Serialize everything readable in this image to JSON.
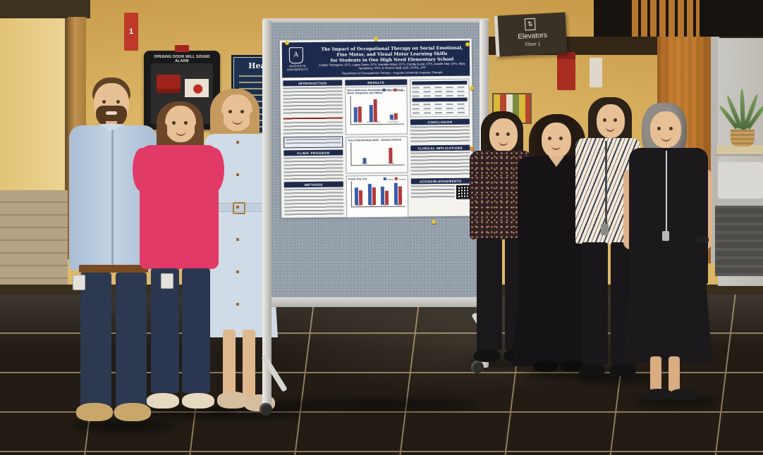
{
  "signs": {
    "stairwell_number": "1",
    "alarm_warning": "OPENING DOOR WILL SOUND ALARM",
    "directory_title": "Health",
    "elevator_label": "Elevators",
    "elevator_floor": "Floor 1",
    "elevator_icon_glyph": "⇅"
  },
  "poster": {
    "logo_letter": "A",
    "university_name": "AUGUSTA UNIVERSITY",
    "title_line1": "The Impact of Occupational Therapy on Social Emotional, Fine Motor, and Visual Motor Learning Skills",
    "title_line2": "for Students in One High Need Elementary School",
    "authors": "Caitlyn Thompson, OTS, Logan Owen, OTS, Haynlee Wood, OTS, Camila Guinn, OTS, Amelie Tate, OTS, Abby Sprayberry, OTS, & Sharon Swift, EdD, OTR/L, ATP",
    "affiliation": "Department of Occupational Therapy – Augusta University, Augusta, Georgia",
    "sections": {
      "introduction": "INTRODUCTION",
      "clinic_program": "CLINIC PROGRAM",
      "methods": "METHODS",
      "results": "RESULTS",
      "conclusion": "CONCLUSION",
      "clinical_implications": "CLINICAL IMPLICATIONS",
      "acknowledgements": "ACKNOWLEDGEMENTS"
    }
  },
  "chart_data": [
    {
      "type": "bar",
      "title": "Beery-Buktenica Developmental Test of Visual Motor Integration, 6th Edition",
      "categories": [
        "VMI Total",
        "Visual Perception",
        "Motor Coordination"
      ],
      "series": [
        {
          "name": "Pretest",
          "color": "#3a5fa8",
          "values": [
            55,
            65,
            20
          ]
        },
        {
          "name": "Posttest",
          "color": "#b23b3b",
          "values": [
            60,
            85,
            28
          ]
        }
      ],
      "ymax": 100,
      "legend": true,
      "legend_position": "top-right"
    },
    {
      "type": "bar",
      "title": "Test of Handwriting Skills – Revised (THS-R)",
      "categories": [
        "Pretest",
        "Posttest"
      ],
      "values": [
        28,
        75
      ],
      "colors": [
        "#3a5fa8",
        "#b23b3b"
      ],
      "ymax": 100,
      "legend": false
    },
    {
      "type": "bar",
      "title": "9-Hole Peg Test",
      "categories": [
        "Trial 1",
        "Trial 2",
        "Trial 3",
        "Trial 4"
      ],
      "series": [
        {
          "name": "Pretest",
          "color": "#3a5fa8",
          "values": [
            75,
            90,
            78,
            92
          ]
        },
        {
          "name": "Posttest",
          "color": "#b23b3b",
          "values": [
            62,
            75,
            60,
            77
          ]
        }
      ],
      "ymax": 100,
      "legend": true,
      "legend_position": "top-right"
    }
  ],
  "people": [
    {
      "id": "person-1",
      "description": "man, short brown hair and beard, light blue button-down shirt, brown belt, navy pants, tan suede shoes"
    },
    {
      "id": "person-2",
      "description": "woman, long brown hair, bright pink ruffle-sleeve top, navy pants, cream flats"
    },
    {
      "id": "person-3",
      "description": "woman, long blonde wavy hair, pale blue sleeveless belted button-front midi dress, tan mule loafers"
    },
    {
      "id": "person-4",
      "description": "woman, dark straight hair, black floral top, black trousers, black shoes"
    },
    {
      "id": "person-5",
      "description": "woman, long dark curly hair, black v-neck tiered maxi dress, black shoes"
    },
    {
      "id": "person-6",
      "description": "woman, shoulder-length dark hair, black-and-white striped blouse, lanyard, black pants"
    },
    {
      "id": "person-7",
      "description": "older woman, curly gray hair, black sleeveless dress, long necklace, black sandals"
    }
  ],
  "colors": {
    "wall": "#d2a752",
    "floor_tile": "#221c15",
    "board_fabric": "#97a1ab",
    "poster_navy": "#1e2a4d",
    "bar_blue": "#3a5fa8",
    "bar_red": "#b23b3b",
    "accent_pink_top": "#e23a66"
  }
}
